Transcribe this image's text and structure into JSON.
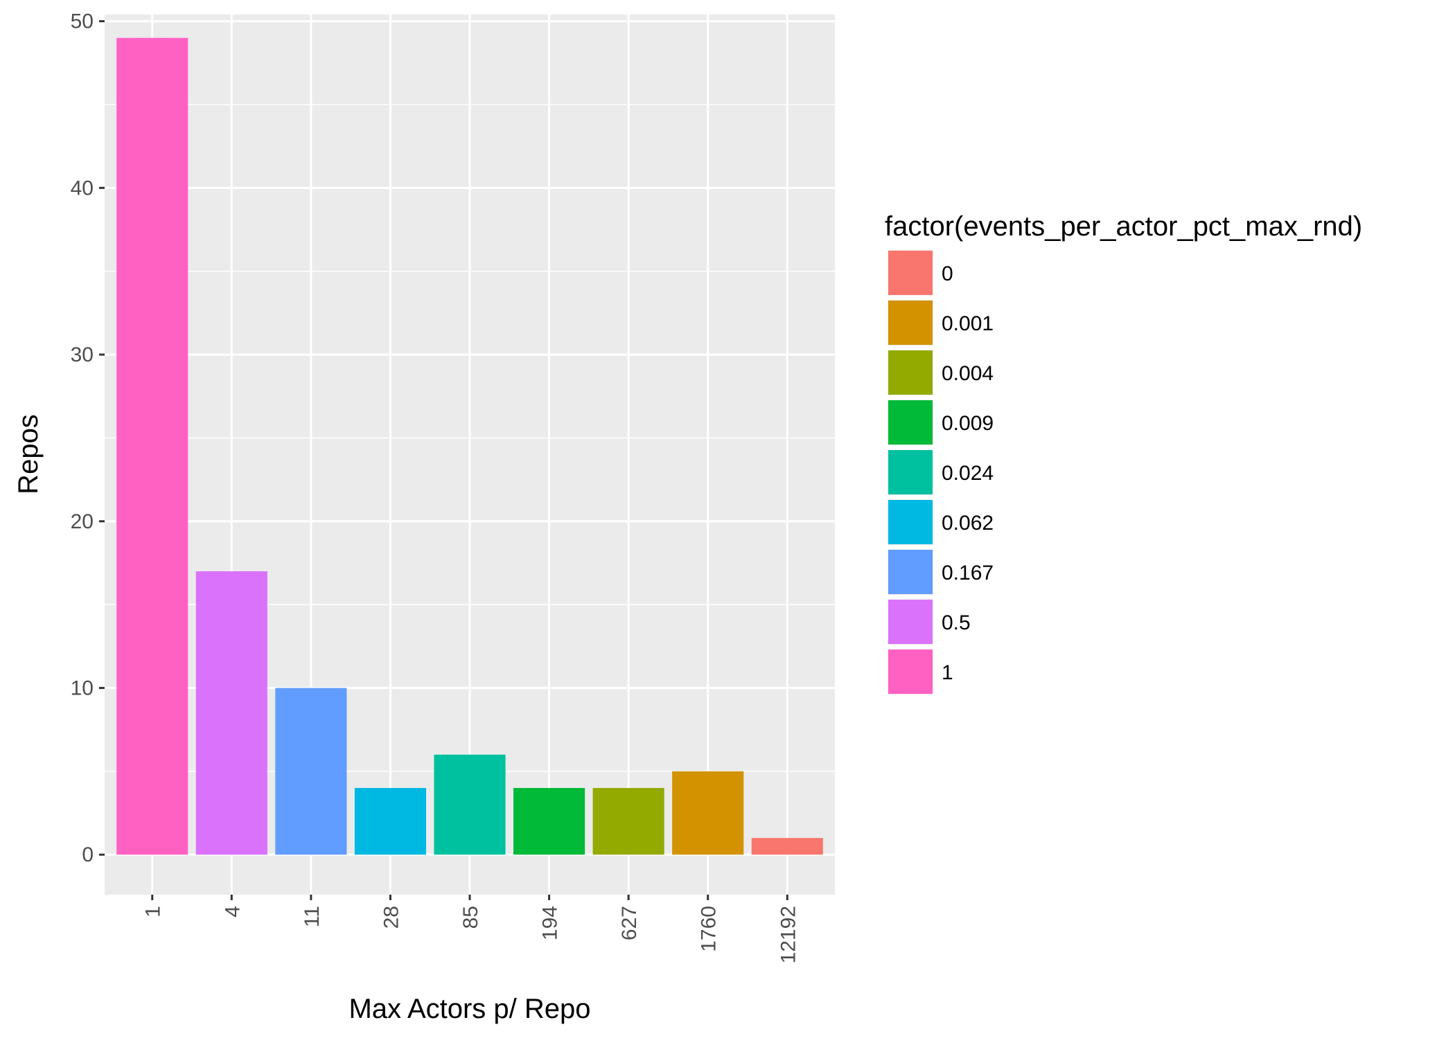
{
  "chart_data": {
    "type": "bar",
    "title": "",
    "xlabel": "Max Actors p/ Repo",
    "ylabel": "Repos",
    "categories": [
      "1",
      "4",
      "11",
      "28",
      "85",
      "194",
      "627",
      "1760",
      "12192"
    ],
    "values": [
      49,
      17,
      10,
      4,
      6,
      4,
      4,
      5,
      1
    ],
    "fill_groups": [
      "1",
      "0.5",
      "0.167",
      "0.062",
      "0.024",
      "0.009",
      "0.004",
      "0.001",
      "0"
    ],
    "ylim": [
      -2.4,
      50.4
    ],
    "yticks": [
      0,
      10,
      20,
      30,
      40,
      50
    ],
    "x_tick_rotation": "vertical",
    "grid": true,
    "legend": {
      "title": "factor(events_per_actor_pct_max_rnd)",
      "position": "right",
      "entries": [
        {
          "label": "0",
          "color": "#F8766D"
        },
        {
          "label": "0.001",
          "color": "#D39200"
        },
        {
          "label": "0.004",
          "color": "#93AA00"
        },
        {
          "label": "0.009",
          "color": "#00BA38"
        },
        {
          "label": "0.024",
          "color": "#00C19F"
        },
        {
          "label": "0.062",
          "color": "#00B9E3"
        },
        {
          "label": "0.167",
          "color": "#619CFF"
        },
        {
          "label": "0.5",
          "color": "#DB72FB"
        },
        {
          "label": "1",
          "color": "#FF61C3"
        }
      ]
    },
    "colors": {
      "panel_background": "#EBEBEB",
      "grid_line": "#FFFFFF",
      "tick_text": "#4D4D4D",
      "tick_mark": "#333333"
    }
  }
}
